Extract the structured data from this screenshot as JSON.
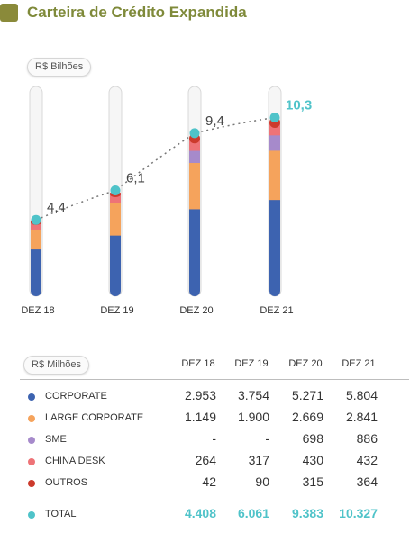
{
  "header": {
    "title": "Carteira de Crédito Expandida"
  },
  "chart_unit_label": "R$ Bilhões",
  "table_unit_label": "R$ Milhões",
  "colors": {
    "corporate": "#3d63b0",
    "large_corporate": "#f5a35c",
    "sme": "#a68acb",
    "china_desk": "#ee7377",
    "outros": "#cc3a2c",
    "total": "#4fc3c9",
    "title": "#7f8a3a"
  },
  "chart_data": {
    "type": "bar",
    "stacked": true,
    "categories": [
      "DEZ 18",
      "DEZ 19",
      "DEZ 20",
      "DEZ 21"
    ],
    "series": [
      {
        "name": "CORPORATE",
        "values": [
          2953,
          3754,
          5271,
          5804
        ]
      },
      {
        "name": "LARGE CORPORATE",
        "values": [
          1149,
          1900,
          2669,
          2841
        ]
      },
      {
        "name": "SME",
        "values": [
          0,
          0,
          698,
          886
        ]
      },
      {
        "name": "CHINA DESK",
        "values": [
          264,
          317,
          430,
          432
        ]
      },
      {
        "name": "OUTROS",
        "values": [
          42,
          90,
          315,
          364
        ]
      }
    ],
    "line": {
      "name": "TOTAL",
      "labels": [
        "4,4",
        "6,1",
        "9,4",
        "10,3"
      ],
      "values": [
        4.4,
        6.1,
        9.4,
        10.3
      ]
    },
    "ylabel": "R$ Bilhões",
    "grid": false
  },
  "table": {
    "columns": [
      "DEZ 18",
      "DEZ 19",
      "DEZ 20",
      "DEZ 21"
    ],
    "rows": [
      {
        "label": "CORPORATE",
        "color": "#3d63b0",
        "values": [
          "2.953",
          "3.754",
          "5.271",
          "5.804"
        ]
      },
      {
        "label": "LARGE CORPORATE",
        "color": "#f5a35c",
        "values": [
          "1.149",
          "1.900",
          "2.669",
          "2.841"
        ]
      },
      {
        "label": "SME",
        "color": "#a68acb",
        "values": [
          "-",
          "-",
          "698",
          "886"
        ]
      },
      {
        "label": "CHINA DESK",
        "color": "#ee7377",
        "values": [
          "264",
          "317",
          "430",
          "432"
        ]
      },
      {
        "label": "OUTROS",
        "color": "#cc3a2c",
        "values": [
          "42",
          "90",
          "315",
          "364"
        ]
      }
    ],
    "total": {
      "label": "TOTAL",
      "color": "#4fc3c9",
      "values": [
        "4.408",
        "6.061",
        "9.383",
        "10.327"
      ]
    }
  }
}
